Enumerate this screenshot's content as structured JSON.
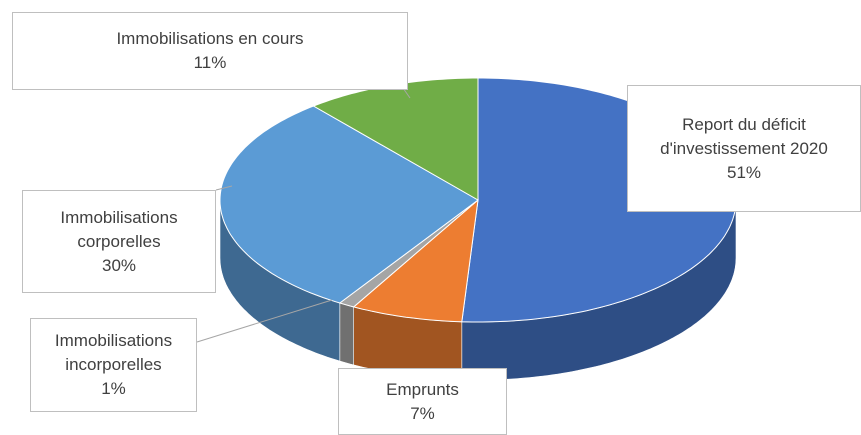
{
  "chart_data": {
    "type": "pie",
    "categories": [
      "Report du déficit d'investissement 2020",
      "Emprunts",
      "Immobilisations incorporelles",
      "Immobilisations corporelles",
      "Immobilisations en cours"
    ],
    "values": [
      51,
      7,
      1,
      30,
      11
    ],
    "value_labels": [
      "51%",
      "7%",
      "1%",
      "30%",
      "11%"
    ],
    "colors": [
      "#4472c4",
      "#ed7d31",
      "#a5a5a5",
      "#5b9bd5",
      "#70ad47"
    ],
    "three_d": true
  }
}
